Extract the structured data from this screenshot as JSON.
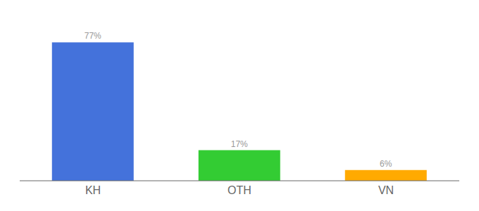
{
  "chart_data": {
    "type": "bar",
    "categories": [
      "KH",
      "OTH",
      "VN"
    ],
    "values": [
      77,
      17,
      6
    ],
    "value_labels": [
      "77%",
      "17%",
      "6%"
    ],
    "colors": [
      "#4472db",
      "#33cc33",
      "#ffaa00"
    ],
    "ylim": [
      0,
      88
    ],
    "data_labels": true,
    "tick_labels": "x",
    "grid": false
  }
}
